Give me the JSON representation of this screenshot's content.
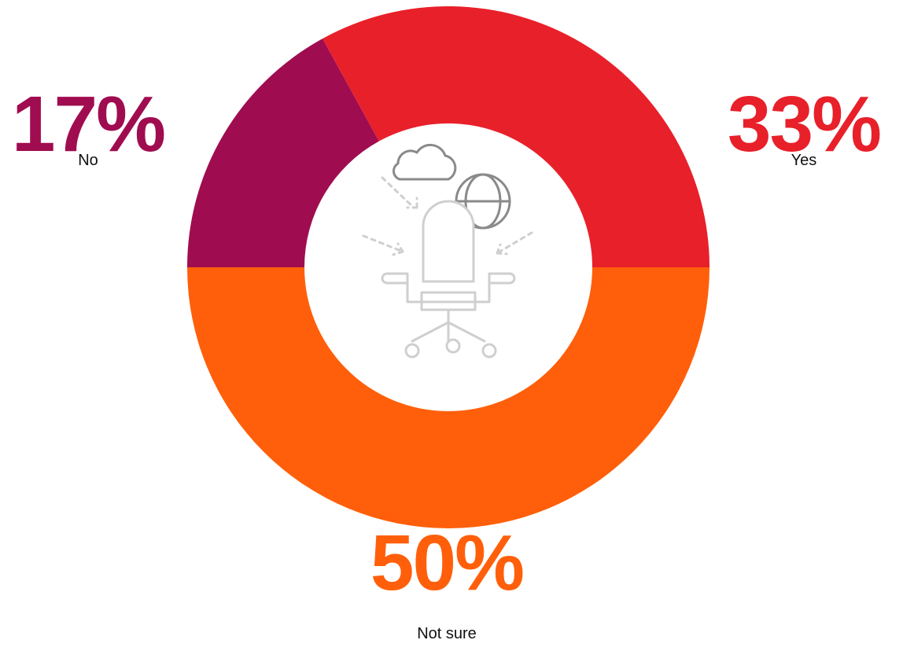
{
  "chart_data": {
    "type": "donut",
    "categories": [
      "Not sure",
      "No",
      "Yes"
    ],
    "values": [
      50,
      17,
      33
    ],
    "value_labels": [
      "50%",
      "17%",
      "33%"
    ],
    "colors": [
      "#ff5f0a",
      "#a00c50",
      "#e8202a"
    ]
  }
}
